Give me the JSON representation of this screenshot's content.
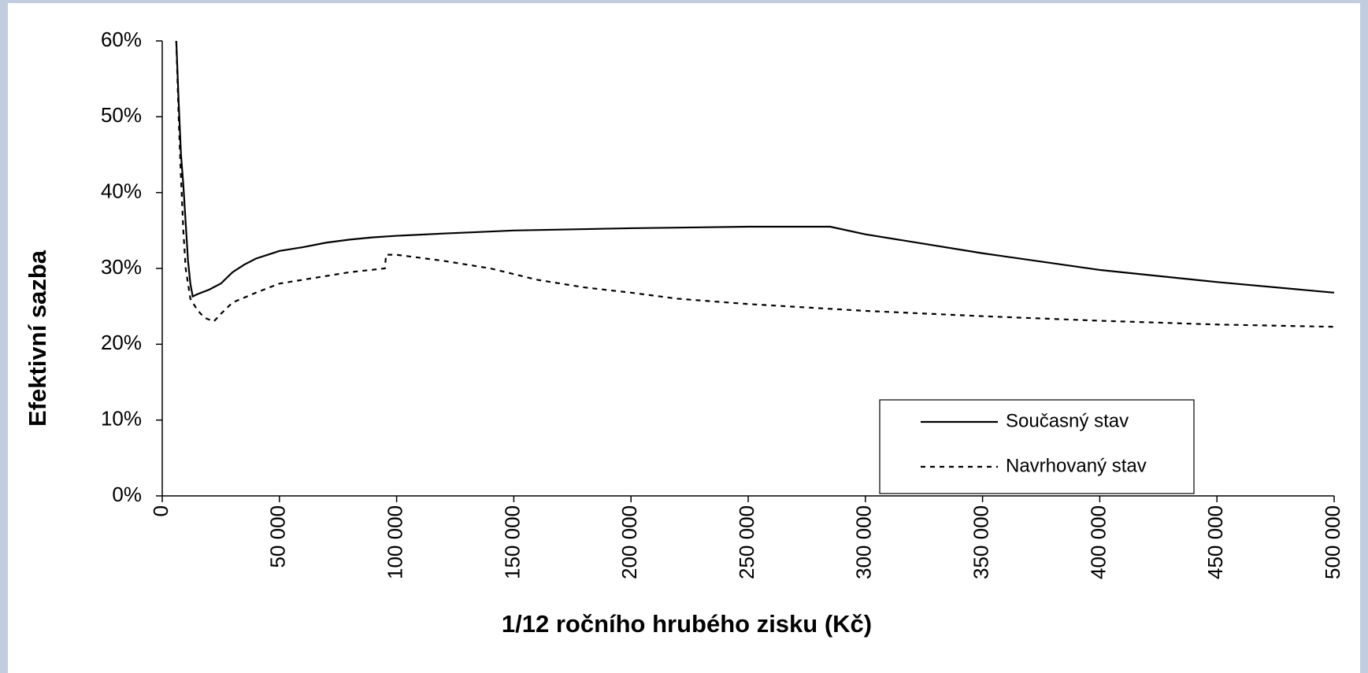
{
  "chart_data": {
    "type": "line",
    "x_label": "1/12 ročního hrubého zisku (Kč)",
    "y_label": "Efektivní sazba",
    "xlim": [
      0,
      500000
    ],
    "ylim": [
      0,
      60
    ],
    "xticks": [
      {
        "value": 0,
        "label": "0"
      },
      {
        "value": 50000,
        "label": "50 000"
      },
      {
        "value": 100000,
        "label": "100 000"
      },
      {
        "value": 150000,
        "label": "150 000"
      },
      {
        "value": 200000,
        "label": "200 000"
      },
      {
        "value": 250000,
        "label": "250 000"
      },
      {
        "value": 300000,
        "label": "300 000"
      },
      {
        "value": 350000,
        "label": "350 000"
      },
      {
        "value": 400000,
        "label": "400 000"
      },
      {
        "value": 450000,
        "label": "450 000"
      },
      {
        "value": 500000,
        "label": "500 000"
      }
    ],
    "yticks": [
      {
        "value": 0,
        "label": "0%"
      },
      {
        "value": 10,
        "label": "10%"
      },
      {
        "value": 20,
        "label": "20%"
      },
      {
        "value": 30,
        "label": "30%"
      },
      {
        "value": 40,
        "label": "40%"
      },
      {
        "value": 50,
        "label": "50%"
      },
      {
        "value": 60,
        "label": "60%"
      }
    ],
    "legend": "lower right",
    "series": [
      {
        "name": "Současný stav",
        "color": "#000000",
        "line_style": "solid",
        "x": [
          6000,
          7000,
          8000,
          9000,
          10000,
          11000,
          12000,
          13000,
          15000,
          20000,
          25000,
          30000,
          35000,
          40000,
          45000,
          50000,
          60000,
          70000,
          80000,
          90000,
          100000,
          120000,
          150000,
          200000,
          250000,
          285000,
          300000,
          350000,
          400000,
          450000,
          500000
        ],
        "values": [
          60,
          52,
          45,
          41,
          36,
          31,
          28,
          26.3,
          26.6,
          27.2,
          28,
          29.5,
          30.5,
          31.3,
          31.8,
          32.3,
          32.8,
          33.4,
          33.8,
          34.1,
          34.3,
          34.6,
          35.0,
          35.3,
          35.5,
          35.5,
          34.5,
          32.0,
          29.8,
          28.2,
          26.8
        ]
      },
      {
        "name": "Navrhovaný stav",
        "color": "#000000",
        "line_style": "dashed",
        "x": [
          6000,
          7000,
          8000,
          9000,
          10000,
          12000,
          15000,
          18000,
          22000,
          25000,
          30000,
          40000,
          50000,
          60000,
          70000,
          80000,
          95000,
          95500,
          100000,
          120000,
          140000,
          160000,
          180000,
          200000,
          220000,
          250000,
          300000,
          350000,
          400000,
          450000,
          500000
        ],
        "values": [
          60,
          50,
          42,
          35,
          30,
          26,
          24.5,
          23.5,
          23,
          24,
          25.5,
          26.8,
          28,
          28.5,
          29,
          29.5,
          30,
          31.8,
          31.8,
          31,
          30,
          28.5,
          27.5,
          26.8,
          26,
          25.3,
          24.4,
          23.7,
          23.1,
          22.6,
          22.3
        ]
      }
    ]
  }
}
